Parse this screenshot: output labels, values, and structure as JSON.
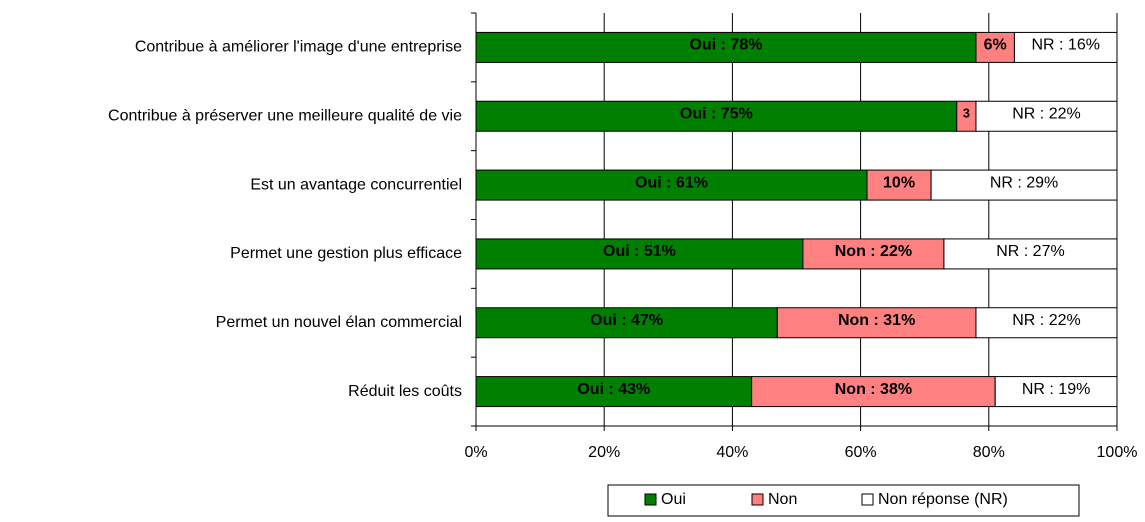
{
  "chart_data": {
    "type": "bar",
    "orientation": "horizontal",
    "stacked": true,
    "categories": [
      "Contribue à améliorer l'image d'une entreprise",
      "Contribue à préserver une meilleure qualité de vie",
      "Est un avantage concurrentiel",
      "Permet une gestion plus efficace",
      "Permet un nouvel élan commercial",
      "Réduit les coûts"
    ],
    "series": [
      {
        "name": "Oui",
        "color": "#008000",
        "values": [
          78,
          75,
          61,
          51,
          47,
          43
        ],
        "value_labels": [
          "Oui : 78%",
          "Oui : 75%",
          "Oui : 61%",
          "Oui : 51%",
          "Oui : 47%",
          "Oui : 43%"
        ]
      },
      {
        "name": "Non",
        "color": "#ff8080",
        "values": [
          6,
          3,
          10,
          22,
          31,
          38
        ],
        "value_labels": [
          "6%",
          "3",
          "10%",
          "Non :  22%",
          "Non : 31%",
          "Non : 38%"
        ]
      },
      {
        "name": "Non réponse (NR)",
        "color": "#ffffff",
        "values": [
          16,
          22,
          29,
          27,
          22,
          19
        ],
        "value_labels": [
          "NR : 16%",
          "NR : 22%",
          "NR : 29%",
          "NR : 27%",
          "NR : 22%",
          "NR : 19%"
        ]
      }
    ],
    "xlim": [
      0,
      100
    ],
    "xticks": [
      {
        "value": 0,
        "label": "0%"
      },
      {
        "value": 20,
        "label": "20%"
      },
      {
        "value": 40,
        "label": "40%"
      },
      {
        "value": 60,
        "label": "60%"
      },
      {
        "value": 80,
        "label": "80%"
      },
      {
        "value": 100,
        "label": "100%"
      }
    ],
    "grid": true,
    "legend": "bottom"
  }
}
